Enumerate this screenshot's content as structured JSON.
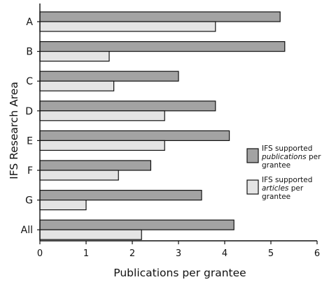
{
  "chart_data": {
    "type": "bar",
    "orientation": "horizontal",
    "categories": [
      "A",
      "B",
      "C",
      "D",
      "E",
      "F",
      "G",
      "All"
    ],
    "series": [
      {
        "name": "IFS supported publications per grantee",
        "legend_lines": [
          [
            {
              "t": "IFS supported",
              "italic": false
            }
          ],
          [
            {
              "t": "publications",
              "italic": true
            },
            {
              "t": " per",
              "italic": false
            }
          ],
          [
            {
              "t": "grantee",
              "italic": false
            }
          ]
        ],
        "color": "#a3a3a3",
        "values": [
          5.2,
          5.3,
          3.0,
          3.8,
          4.1,
          2.4,
          3.5,
          4.2
        ]
      },
      {
        "name": "IFS supported articles per grantee",
        "legend_lines": [
          [
            {
              "t": "IFS supported",
              "italic": false
            }
          ],
          [
            {
              "t": "articles",
              "italic": true
            },
            {
              "t": " per",
              "italic": false
            }
          ],
          [
            {
              "t": "grantee",
              "italic": false
            }
          ]
        ],
        "color": "#e4e4e4",
        "values": [
          3.8,
          1.5,
          1.6,
          2.7,
          2.7,
          1.7,
          1.0,
          2.2
        ]
      }
    ],
    "xlabel": "Publications per grantee",
    "ylabel": "IFS Research Area",
    "xlim": [
      0,
      6
    ],
    "xticks": [
      0,
      1,
      2,
      3,
      4,
      5,
      6
    ],
    "grid": false,
    "legend_position": "right"
  }
}
